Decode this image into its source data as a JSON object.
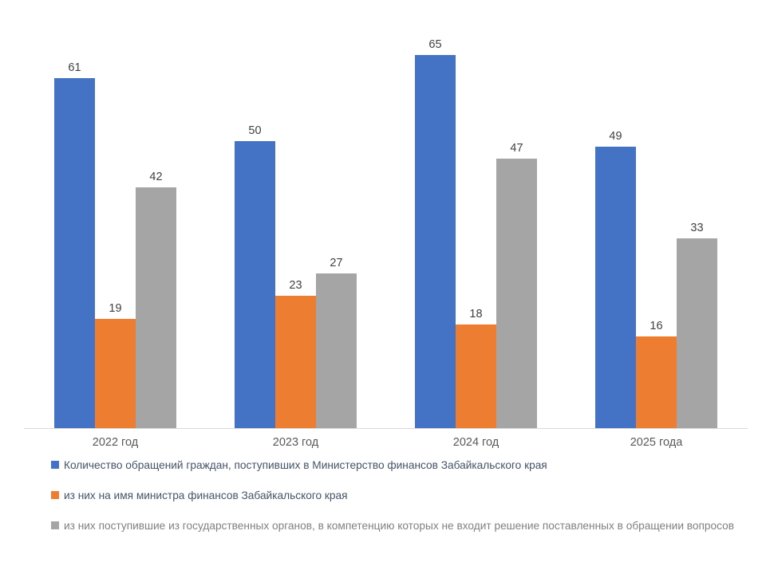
{
  "chart_data": {
    "type": "bar",
    "title": "",
    "xlabel": "",
    "ylabel": "",
    "categories": [
      "2022 год",
      "2023 год",
      "2024 год",
      "2025 года"
    ],
    "series": [
      {
        "name": "Количество обращений граждан, поступивших в Министерство финансов Забайкальского края",
        "color": "#4472C4",
        "values": [
          61,
          50,
          65,
          49
        ]
      },
      {
        "name": "из них на имя министра финансов Забайкальского края",
        "color": "#ED7D31",
        "values": [
          19,
          23,
          18,
          16
        ]
      },
      {
        "name": "из них поступившие из государственных органов, в компетенцию которых не входит решение поставленных в обращении вопросов",
        "color": "#A5A5A5",
        "values": [
          42,
          27,
          47,
          33
        ]
      }
    ],
    "ylim": [
      0,
      70
    ],
    "grid": false,
    "data_labels": true,
    "legend_position": "bottom-left",
    "legend_text_colors": [
      "#44546A",
      "#44546A",
      "#808080"
    ],
    "value_label_color": "#404040",
    "category_label_color": "#595959",
    "axis_line_color": "#D9D9D9",
    "background_color": "#FFFFFF"
  }
}
